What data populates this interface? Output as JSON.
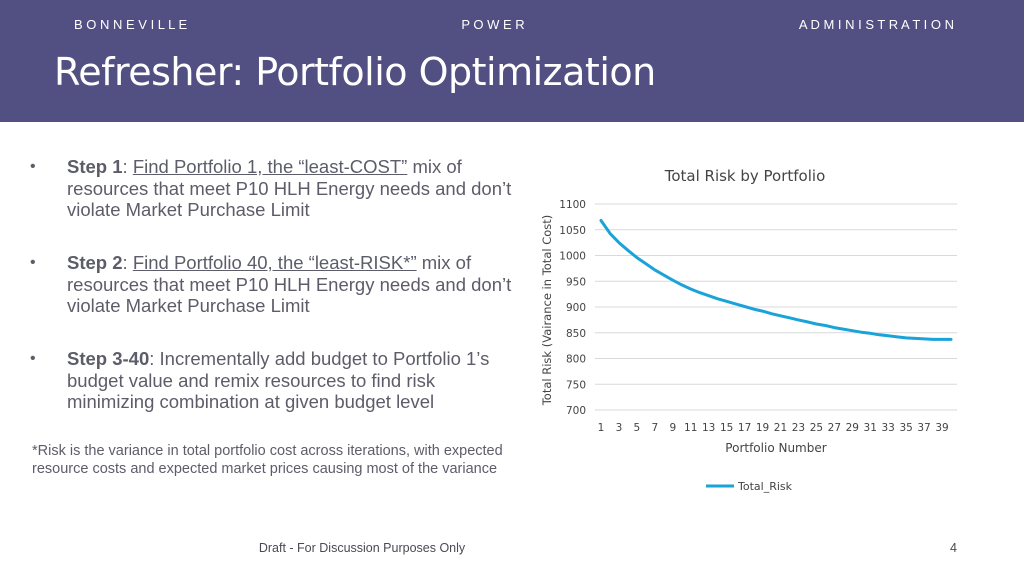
{
  "header": {
    "org_words": [
      "B O N N E V I L L E",
      "P O W E R",
      "A D M I N I S T R A T I O N"
    ],
    "title": "Refresher: Portfolio Optimization"
  },
  "bullets": [
    {
      "label": "Step 1",
      "sep": ": ",
      "link": "Find Portfolio 1, the “least-COST”",
      "rest": " mix of resources that meet P10 HLH Energy needs and don’t violate Market Purchase Limit"
    },
    {
      "label": "Step 2",
      "sep": ": ",
      "link": "Find Portfolio 40, the “least-RISK*”",
      "rest": " mix of resources that meet P10 HLH Energy needs and don’t violate Market Purchase Limit"
    },
    {
      "label": "Step 3-40",
      "sep": ": ",
      "rest": "Incrementally add budget to Portfolio 1’s budget value and remix resources to find risk minimizing combination at given budget level"
    }
  ],
  "footnote": "*Risk is the variance in total portfolio cost across iterations, with expected resource costs and expected market prices causing most of the variance",
  "footer": {
    "text": "Draft - For Discussion Purposes Only",
    "page": "4"
  },
  "colors": {
    "header_bg": "#524f82",
    "line": "#1aa3d8"
  },
  "chart_data": {
    "type": "line",
    "title": "Total Risk by Portfolio",
    "xlabel": "Portfolio Number",
    "ylabel": "Total Risk (Vairance in Total Cost)",
    "ylim": [
      700,
      1100
    ],
    "yticks": [
      700,
      750,
      800,
      850,
      900,
      950,
      1000,
      1050,
      1100
    ],
    "xtick_labels": [
      "1",
      "3",
      "5",
      "7",
      "9",
      "11",
      "13",
      "15",
      "17",
      "19",
      "21",
      "23",
      "25",
      "27",
      "29",
      "31",
      "33",
      "35",
      "37",
      "39"
    ],
    "legend": "Total_Risk",
    "legend_position": "bottom",
    "series": [
      {
        "name": "Total_Risk",
        "x": [
          1,
          2,
          3,
          4,
          5,
          6,
          7,
          8,
          9,
          10,
          11,
          12,
          13,
          14,
          15,
          16,
          17,
          18,
          19,
          20,
          21,
          22,
          23,
          24,
          25,
          26,
          27,
          28,
          29,
          30,
          31,
          32,
          33,
          34,
          35,
          36,
          37,
          38,
          39,
          40
        ],
        "values": [
          1068,
          1043,
          1025,
          1010,
          996,
          984,
          972,
          962,
          952,
          943,
          935,
          928,
          922,
          916,
          911,
          906,
          901,
          896,
          892,
          887,
          883,
          879,
          875,
          871,
          867,
          864,
          860,
          857,
          854,
          851,
          849,
          846,
          844,
          842,
          840,
          839,
          838,
          837,
          837,
          837
        ]
      }
    ]
  }
}
